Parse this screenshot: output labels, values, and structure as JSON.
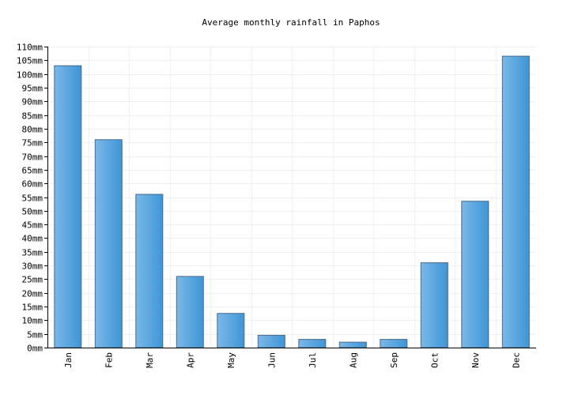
{
  "chart_data": {
    "type": "bar",
    "title": "Average monthly rainfall in Paphos",
    "xlabel": "",
    "ylabel": "",
    "unit": "mm",
    "categories": [
      "Jan",
      "Feb",
      "Mar",
      "Apr",
      "May",
      "Jun",
      "Jul",
      "Aug",
      "Sep",
      "Oct",
      "Nov",
      "Dec"
    ],
    "values": [
      103,
      76,
      56,
      26,
      12.5,
      4.5,
      3,
      2,
      3,
      31,
      53.5,
      106.5
    ],
    "ylim": [
      0,
      110
    ],
    "ytick_step": 5,
    "yticks": [
      "0mm",
      "5mm",
      "10mm",
      "15mm",
      "20mm",
      "25mm",
      "30mm",
      "35mm",
      "40mm",
      "45mm",
      "50mm",
      "55mm",
      "60mm",
      "65mm",
      "70mm",
      "75mm",
      "80mm",
      "85mm",
      "90mm",
      "95mm",
      "100mm",
      "105mm",
      "110mm"
    ],
    "grid": true,
    "bar_color_start": "#7bb8e8",
    "bar_color_end": "#3d95d6",
    "bar_border": "#4a6a8a",
    "grid_color": "#eef0f4"
  }
}
